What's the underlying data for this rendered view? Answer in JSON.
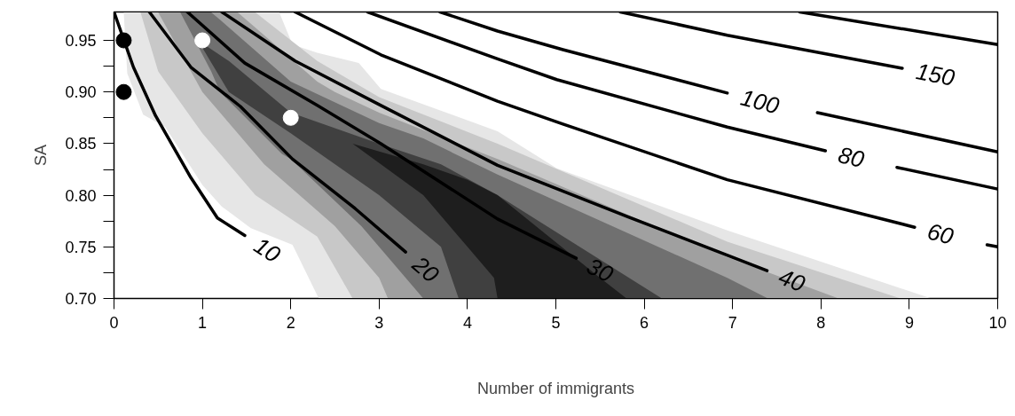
{
  "chart_data": {
    "type": "line",
    "xlabel": "Number of immigrants",
    "ylabel": "SA",
    "xlim": [
      0,
      10
    ],
    "ylim": [
      0.7,
      0.9775
    ],
    "xticks": [
      0,
      1,
      2,
      3,
      4,
      5,
      6,
      7,
      8,
      9,
      10
    ],
    "yticks": [
      {
        "value": 0.7,
        "label": "0.70"
      },
      {
        "value": 0.725,
        "label": null
      },
      {
        "value": 0.75,
        "label": "0.75"
      },
      {
        "value": 0.775,
        "label": null
      },
      {
        "value": 0.8,
        "label": "0.80"
      },
      {
        "value": 0.825,
        "label": null
      },
      {
        "value": 0.85,
        "label": "0.85"
      },
      {
        "value": 0.875,
        "label": null
      },
      {
        "value": 0.9,
        "label": "0.90"
      },
      {
        "value": 0.925,
        "label": null
      },
      {
        "value": 0.95,
        "label": "0.95"
      }
    ],
    "grid": false,
    "line_style": "solid",
    "series": [
      {
        "type": "area",
        "color": "#e6e6e6",
        "x": [
          0.11,
          1.87,
          2.02,
          2.3,
          2.77,
          3.02,
          4.34,
          5.01,
          6.94,
          9.25,
          2.32,
          2.3,
          2.02,
          1.55,
          1.22,
          1.0,
          0.58,
          0.33,
          0.15
        ],
        "values": [
          0.977,
          0.977,
          0.946,
          0.938,
          0.928,
          0.903,
          0.862,
          0.826,
          0.766,
          0.7,
          0.7,
          0.703,
          0.752,
          0.768,
          0.789,
          0.81,
          0.866,
          0.878,
          0.918
        ]
      },
      {
        "type": "area",
        "color": "#c8c8c8",
        "x": [
          0.3,
          1.6,
          2.3,
          2.7,
          3.0,
          4.34,
          6.94,
          8.9,
          2.7,
          2.3,
          1.6,
          1.0,
          0.5
        ],
        "values": [
          0.977,
          0.977,
          0.93,
          0.91,
          0.895,
          0.85,
          0.755,
          0.7,
          0.7,
          0.76,
          0.8,
          0.86,
          0.92
        ]
      },
      {
        "type": "area",
        "color": "#a0a0a0",
        "x": [
          0.5,
          1.4,
          1.7,
          2.3,
          2.5,
          3.0,
          4.34,
          6.94,
          8.2,
          3.1,
          3.0,
          2.5,
          2.3,
          1.7,
          1.4,
          1.0
        ],
        "values": [
          0.977,
          0.977,
          0.955,
          0.91,
          0.9,
          0.88,
          0.835,
          0.74,
          0.7,
          0.7,
          0.72,
          0.77,
          0.785,
          0.83,
          0.86,
          0.9
        ]
      },
      {
        "type": "area",
        "color": "#707070",
        "x": [
          0.75,
          1.1,
          1.2,
          2.0,
          3.0,
          3.5,
          4.34,
          6.94,
          7.4,
          3.5,
          3.0,
          2.8,
          2.0,
          1.9,
          1.2,
          1.1
        ],
        "values": [
          0.977,
          0.977,
          0.97,
          0.91,
          0.87,
          0.855,
          0.82,
          0.72,
          0.7,
          0.7,
          0.75,
          0.77,
          0.835,
          0.84,
          0.9,
          0.92
        ]
      },
      {
        "type": "area",
        "color": "#404040",
        "x": [
          0.95,
          1.3,
          2.0,
          3.0,
          3.7,
          4.34,
          6.2,
          3.9,
          3.7,
          3.0,
          2.0,
          1.3
        ],
        "values": [
          0.95,
          0.93,
          0.88,
          0.85,
          0.83,
          0.8,
          0.7,
          0.7,
          0.75,
          0.8,
          0.86,
          0.9
        ]
      },
      {
        "type": "area",
        "color": "#1e1e1e",
        "x": [
          2.7,
          3.5,
          4.0,
          4.34,
          5.5,
          5.8,
          4.34,
          4.3,
          4.0,
          3.5
        ],
        "values": [
          0.85,
          0.83,
          0.815,
          0.8,
          0.72,
          0.7,
          0.7,
          0.72,
          0.75,
          0.8
        ]
      },
      {
        "name": "10",
        "color": "#000000",
        "x": [
          0,
          0.22,
          0.47,
          0.87,
          1.17,
          1.48
        ],
        "values": [
          0.9775,
          0.924,
          0.877,
          0.817,
          0.778,
          0.761
        ]
      },
      {
        "name": "20",
        "color": "#000000",
        "x": [
          0.4,
          0.87,
          1.43,
          2.02,
          2.73,
          3.3
        ],
        "values": [
          0.9775,
          0.924,
          0.886,
          0.835,
          0.787,
          0.745
        ]
      },
      {
        "name": "30",
        "color": "#000000",
        "x": [
          0.83,
          1.48,
          2.3,
          3.02,
          4.34,
          5.23
        ],
        "values": [
          0.9775,
          0.928,
          0.887,
          0.85,
          0.777,
          0.739
        ]
      },
      {
        "name": "40",
        "color": "#000000",
        "x": [
          1.22,
          2.05,
          3.02,
          4.34,
          5.82,
          7.39
        ],
        "values": [
          0.9775,
          0.93,
          0.887,
          0.829,
          0.779,
          0.727
        ]
      },
      {
        "name": "60",
        "color": "#000000",
        "x": [
          2.05,
          3.02,
          4.34,
          5.08,
          6.94,
          9.06,
          9.5,
          9.88,
          10
        ],
        "values": [
          0.9775,
          0.936,
          0.891,
          0.869,
          0.815,
          0.769,
          null,
          0.752,
          0.75
        ]
      },
      {
        "name": "80",
        "color": "#000000",
        "x": [
          2.87,
          4.34,
          5.01,
          6.94,
          8.05,
          8.45,
          8.86,
          10
        ],
        "values": [
          0.9775,
          0.932,
          0.912,
          0.866,
          0.843,
          null,
          0.827,
          0.806
        ]
      },
      {
        "name": "100",
        "color": "#000000",
        "x": [
          3.69,
          4.34,
          5.08,
          6.94,
          7.47,
          7.96,
          10
        ],
        "values": [
          0.9775,
          0.959,
          0.941,
          0.899,
          null,
          0.88,
          0.842
        ]
      },
      {
        "name": "150",
        "color": "#000000",
        "x": [
          5.73,
          6.94,
          8.92
        ],
        "values": [
          0.9775,
          0.955,
          0.923
        ]
      },
      {
        "color": "#000000",
        "x": [
          7.76,
          10
        ],
        "values": [
          0.9775,
          0.946
        ]
      },
      {
        "type": "scatter",
        "marker": "circle",
        "color": "#000000",
        "x": [
          0.11,
          0.11
        ],
        "values": [
          0.95,
          0.9
        ]
      },
      {
        "type": "scatter",
        "marker": "circle",
        "color": "#ffffff",
        "x": [
          1.0,
          2.0
        ],
        "values": [
          0.95,
          0.875
        ]
      }
    ]
  }
}
